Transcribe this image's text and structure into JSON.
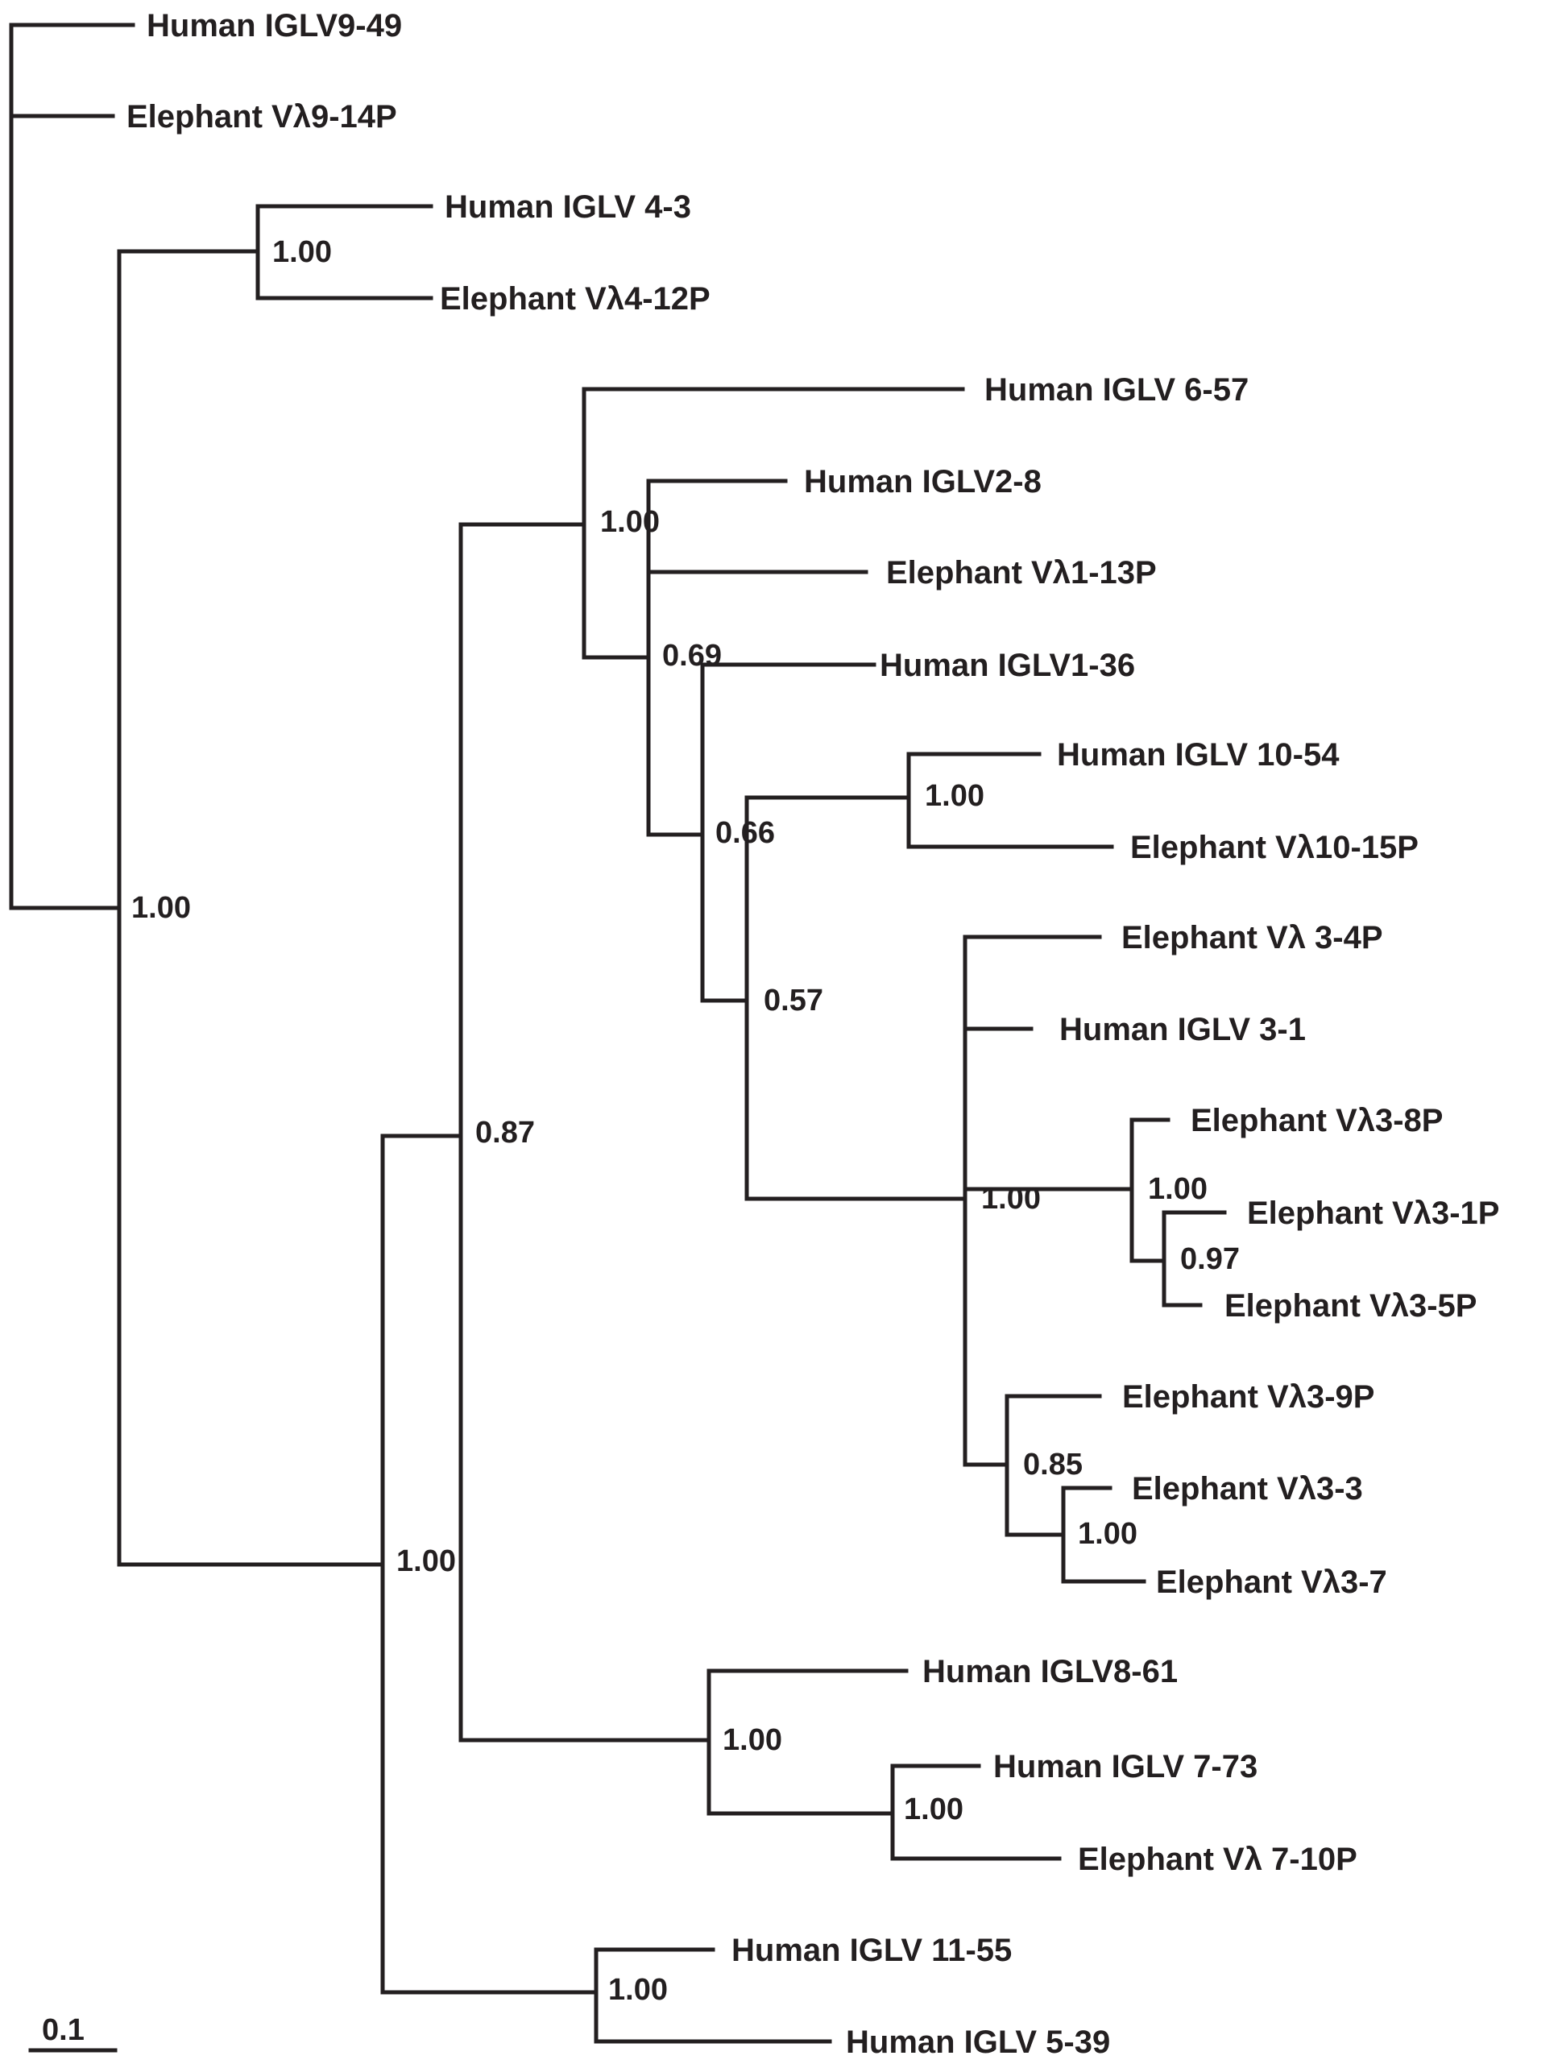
{
  "tree": {
    "leaves": {
      "h9_49": "Human IGLV9-49",
      "e9_14p": "Elephant Vλ9-14P",
      "h4_3": "Human IGLV 4-3",
      "e4_12p": "Elephant Vλ4-12P",
      "h6_57": "Human IGLV 6-57",
      "h2_8": "Human IGLV2-8",
      "e1_13p": "Elephant Vλ1-13P",
      "h1_36": "Human IGLV1-36",
      "h10_54": "Human IGLV 10-54",
      "e10_15p": "Elephant Vλ10-15P",
      "e3_4p": "Elephant Vλ 3-4P",
      "h3_1": "Human IGLV 3-1",
      "e3_8p": "Elephant Vλ3-8P",
      "e3_1p": "Elephant Vλ3-1P",
      "e3_5p": "Elephant Vλ3-5P",
      "e3_9p": "Elephant Vλ3-9P",
      "e3_3": "Elephant Vλ3-3",
      "e3_7": "Elephant Vλ3-7",
      "h8_61": "Human IGLV8-61",
      "h7_73": "Human IGLV 7-73",
      "e7_10p": "Elephant Vλ 7-10P",
      "h11_55": "Human IGLV 11-55",
      "h5_39": "Human IGLV 5-39"
    },
    "support": {
      "n_main": "1.00",
      "n_4": "1.00",
      "n_087": "0.87",
      "n_100_big": "1.00",
      "n_clade1": "1.00",
      "n_069": "0.69",
      "n_10": "1.00",
      "n_066": "0.66",
      "n_057": "0.57",
      "n_3": "1.00",
      "n_3_8": "1.00",
      "n_097": "0.97",
      "n_085": "0.85",
      "n_3_3": "1.00",
      "n_8_7": "1.00",
      "n_7": "1.00",
      "n_11_5": "1.00"
    },
    "scale_bar": "0.1"
  }
}
